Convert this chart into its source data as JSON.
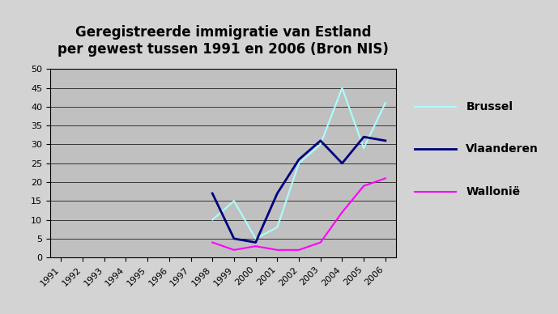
{
  "title": "Geregistreerde immigratie van Estland\nper gewest tussen 1991 en 2006 (Bron NIS)",
  "years": [
    1991,
    1992,
    1993,
    1994,
    1995,
    1996,
    1997,
    1998,
    1999,
    2000,
    2001,
    2002,
    2003,
    2004,
    2005,
    2006
  ],
  "brussel": [
    null,
    null,
    null,
    null,
    null,
    null,
    null,
    10,
    15,
    5,
    8,
    25,
    30,
    45,
    29,
    41
  ],
  "vlaanderen": [
    null,
    null,
    null,
    null,
    null,
    null,
    null,
    17,
    5,
    4,
    17,
    26,
    31,
    25,
    32,
    31
  ],
  "wallonie": [
    null,
    null,
    null,
    null,
    null,
    null,
    null,
    4,
    2,
    3,
    2,
    2,
    4,
    12,
    19,
    21
  ],
  "brussel_color": "#aaffff",
  "vlaanderen_color": "#000080",
  "wallonie_color": "#ff00ff",
  "ylim": [
    0,
    50
  ],
  "yticks": [
    0,
    5,
    10,
    15,
    20,
    25,
    30,
    35,
    40,
    45,
    50
  ],
  "plot_bg_color": "#c0c0c0",
  "outer_bg_color": "#d3d3d3",
  "legend_bg_color": "#e8e8e8",
  "legend_labels": [
    "Brussel",
    "Vlaanderen",
    "Wallonië"
  ],
  "title_fontsize": 12,
  "tick_fontsize": 8,
  "legend_fontsize": 10
}
